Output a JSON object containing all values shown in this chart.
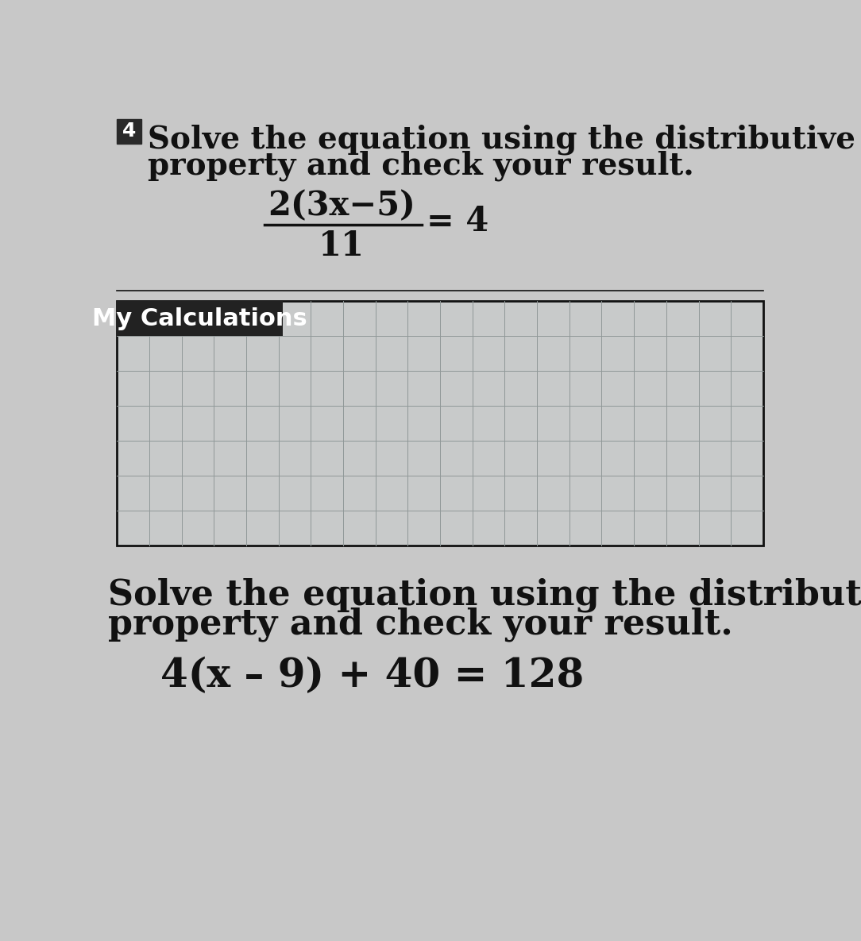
{
  "background_color": "#c8c8c8",
  "page_color": "#d0d0d0",
  "title1_number": "4",
  "title1_line1": "Solve the equation using the distributive",
  "title1_line2": "property and check your result.",
  "equation1_numerator": "2(3x−5)",
  "equation1_denominator": "11",
  "equation1_rhs": "= 4",
  "section_label": "My Calculations",
  "section_label_bg": "#222222",
  "section_label_color": "#ffffff",
  "grid_bg": "#c8caca",
  "grid_line_color": "#909898",
  "divider_color": "#111111",
  "title2_line1": "Solve the equation using the distributive",
  "title2_line2": "property and check your result.",
  "equation2": "4(x – 9) + 40 = 128",
  "title1_fontsize": 28,
  "title2_fontsize": 32,
  "eq1_fontsize": 30,
  "eq2_fontsize": 36,
  "label_fontsize": 22,
  "badge_fontsize": 18,
  "number_badge_bg": "#2a2a2a",
  "number_badge_color": "#ffffff",
  "box_border_color": "#111111",
  "text_color": "#111111"
}
